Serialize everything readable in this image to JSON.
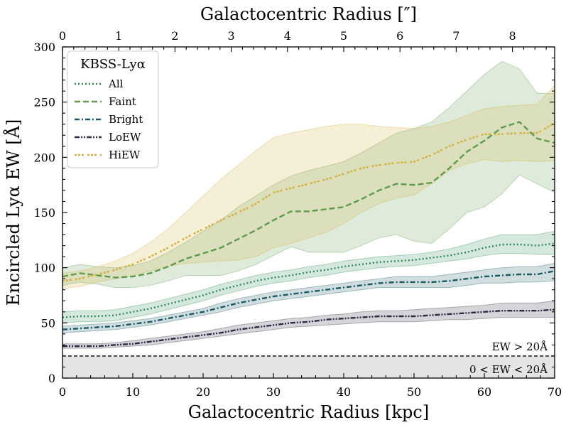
{
  "chart_data": {
    "type": "line",
    "xlabel": "Galactocentric Radius [kpc]",
    "ylabel": "Encircled Lyα EW [Å]",
    "top_xlabel": "Galactocentric Radius [″]",
    "xlim": [
      0,
      70
    ],
    "ylim": [
      0,
      300
    ],
    "top_xlim_arcsec": [
      0,
      8.75
    ],
    "x_ticks": [
      "0",
      "10",
      "20",
      "30",
      "40",
      "50",
      "60",
      "70"
    ],
    "y_ticks": [
      "0",
      "50",
      "100",
      "150",
      "200",
      "250",
      "300"
    ],
    "top_ticks": [
      "0",
      "1",
      "2",
      "3",
      "4",
      "5",
      "6",
      "7",
      "8"
    ],
    "legend": {
      "title": "KBSS-Lyα",
      "location": "top-left"
    },
    "threshold": {
      "y": 20,
      "label_above": "EW > 20Å",
      "label_below": "0 < EW < 20Å",
      "fill_color": "#e4e4e4"
    },
    "x": [
      0,
      2.5,
      5,
      7.5,
      10,
      12.5,
      15,
      17.5,
      20,
      22.5,
      25,
      27.5,
      30,
      32.5,
      35,
      37.5,
      40,
      42.5,
      45,
      47.5,
      50,
      52.5,
      55,
      57.5,
      60,
      62.5,
      65,
      67.5,
      70
    ],
    "series": [
      {
        "name": "All",
        "color": "#2e8b57",
        "dash": "2,3",
        "values": [
          55,
          56,
          56,
          57,
          60,
          63,
          67,
          71,
          75,
          80,
          84,
          88,
          91,
          93,
          96,
          98,
          101,
          103,
          105,
          106,
          107,
          109,
          111,
          114,
          118,
          121,
          121,
          120,
          122
        ],
        "upper": [
          60,
          61,
          61,
          62,
          65,
          68,
          72,
          76,
          80,
          85,
          89,
          93,
          96,
          98,
          101,
          103,
          106,
          108,
          110,
          111,
          112,
          114,
          117,
          121,
          126,
          130,
          130,
          130,
          133
        ],
        "lower": [
          50,
          51,
          51,
          52,
          55,
          58,
          62,
          66,
          70,
          75,
          79,
          83,
          86,
          88,
          91,
          93,
          96,
          98,
          100,
          101,
          102,
          104,
          106,
          108,
          111,
          113,
          113,
          112,
          112
        ]
      },
      {
        "name": "Faint",
        "color": "#5c9c4a",
        "dash": "8,4",
        "values": [
          92,
          95,
          93,
          91,
          92,
          95,
          101,
          108,
          113,
          118,
          126,
          134,
          143,
          151,
          151,
          153,
          155,
          162,
          170,
          176,
          175,
          177,
          190,
          205,
          215,
          227,
          232,
          217,
          213
        ],
        "upper": [
          100,
          103,
          101,
          100,
          102,
          106,
          114,
          123,
          133,
          143,
          155,
          165,
          175,
          183,
          188,
          192,
          196,
          204,
          213,
          222,
          226,
          232,
          245,
          260,
          275,
          287,
          280,
          258,
          258
        ],
        "lower": [
          84,
          87,
          85,
          82,
          82,
          84,
          88,
          93,
          93,
          93,
          97,
          103,
          111,
          119,
          114,
          114,
          114,
          120,
          127,
          130,
          124,
          122,
          135,
          150,
          155,
          167,
          184,
          176,
          168
        ]
      },
      {
        "name": "Bright",
        "color": "#1a5a63",
        "dash": "7,3,2,3",
        "values": [
          44,
          45,
          46,
          47,
          49,
          51,
          54,
          57,
          60,
          64,
          68,
          71,
          74,
          76,
          78,
          80,
          82,
          84,
          86,
          87,
          87,
          87,
          88,
          90,
          92,
          93,
          94,
          94,
          97
        ],
        "upper": [
          47,
          48,
          49,
          50,
          52,
          54,
          57,
          60,
          63,
          68,
          72,
          75,
          78,
          80,
          82,
          84,
          86,
          88,
          90,
          92,
          92,
          92,
          94,
          96,
          98,
          100,
          101,
          101,
          104
        ],
        "lower": [
          41,
          42,
          43,
          44,
          46,
          48,
          51,
          54,
          57,
          60,
          64,
          67,
          70,
          72,
          74,
          76,
          78,
          80,
          82,
          82,
          82,
          82,
          82,
          84,
          86,
          86,
          87,
          87,
          88
        ]
      },
      {
        "name": "LoEW",
        "color": "#2b2d42",
        "dash": "7,2,2,2,2,2",
        "values": [
          29,
          29,
          29,
          30,
          31,
          33,
          35,
          37,
          39,
          41,
          44,
          46,
          48,
          50,
          51,
          53,
          54,
          55,
          56,
          56,
          56,
          57,
          58,
          59,
          60,
          61,
          61,
          61,
          62
        ],
        "upper": [
          31,
          31,
          31,
          32,
          34,
          36,
          38,
          40,
          42,
          45,
          48,
          50,
          52,
          54,
          55,
          57,
          58,
          60,
          61,
          61,
          62,
          63,
          64,
          65,
          66,
          68,
          68,
          68,
          70
        ],
        "lower": [
          27,
          27,
          27,
          28,
          29,
          30,
          32,
          34,
          36,
          38,
          40,
          42,
          44,
          46,
          47,
          48,
          49,
          50,
          51,
          51,
          51,
          52,
          53,
          53,
          54,
          55,
          55,
          55,
          55
        ]
      },
      {
        "name": "HiEW",
        "color": "#d4b03a",
        "dash": "3,2,3,2,3,5",
        "values": [
          88,
          90,
          94,
          98,
          103,
          110,
          118,
          127,
          135,
          143,
          150,
          158,
          168,
          172,
          176,
          180,
          185,
          190,
          193,
          195,
          196,
          202,
          210,
          216,
          221,
          221,
          222,
          222,
          231
        ],
        "upper": [
          95,
          97,
          101,
          106,
          113,
          123,
          135,
          150,
          165,
          180,
          193,
          206,
          218,
          222,
          225,
          228,
          230,
          230,
          228,
          227,
          226,
          228,
          232,
          238,
          244,
          246,
          247,
          248,
          265
        ],
        "lower": [
          81,
          83,
          87,
          90,
          93,
          97,
          101,
          104,
          105,
          106,
          107,
          110,
          118,
          122,
          127,
          132,
          140,
          150,
          158,
          163,
          166,
          176,
          188,
          194,
          198,
          196,
          197,
          196,
          197
        ]
      }
    ]
  }
}
